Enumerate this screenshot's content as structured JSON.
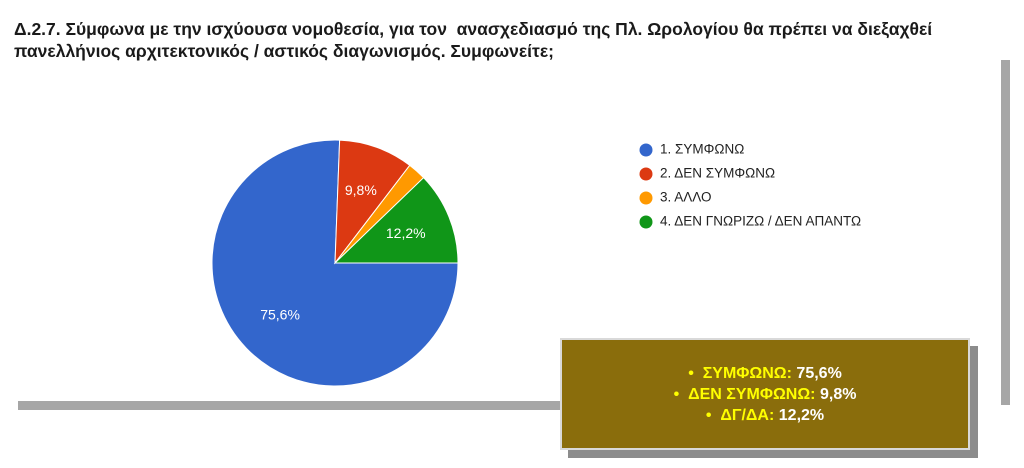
{
  "chart_data": {
    "type": "pie",
    "title": "Δ.2.7. Σύμφωνα με την ισχύουσα νομοθεσία, για τον  ανασχεδιασμό της Πλ. Ωρολογίου θα πρέπει να διεξαχθεί πανελλήνιος αρχιτεκτονικός / αστικός διαγωνισμός. Συμφωνείτε;",
    "categories": [
      "1. ΣΥΜΦΩΝΩ",
      "2. ΔΕΝ ΣΥΜΦΩΝΩ",
      "3. ΑΛΛΟ",
      "4. ΔΕΝ ΓΝΩΡΙΖΩ / ΔΕΝ ΑΠΑΝΤΩ"
    ],
    "values": [
      75.6,
      9.8,
      2.4,
      12.2
    ],
    "value_labels": [
      "75,6%",
      "9,8%",
      null,
      "12,2%"
    ],
    "colors": [
      "#3366cc",
      "#dc3912",
      "#ff9900",
      "#109618"
    ],
    "legend": "right"
  },
  "summary_box": {
    "items": [
      {
        "label": "ΣΥΜΦΩΝΩ:",
        "value": "75,6%"
      },
      {
        "label": "ΔΕΝ ΣΥΜΦΩΝΩ:",
        "value": "9,8%"
      },
      {
        "label": "ΔΓ/ΔΑ:",
        "value": "12,2%"
      }
    ]
  }
}
